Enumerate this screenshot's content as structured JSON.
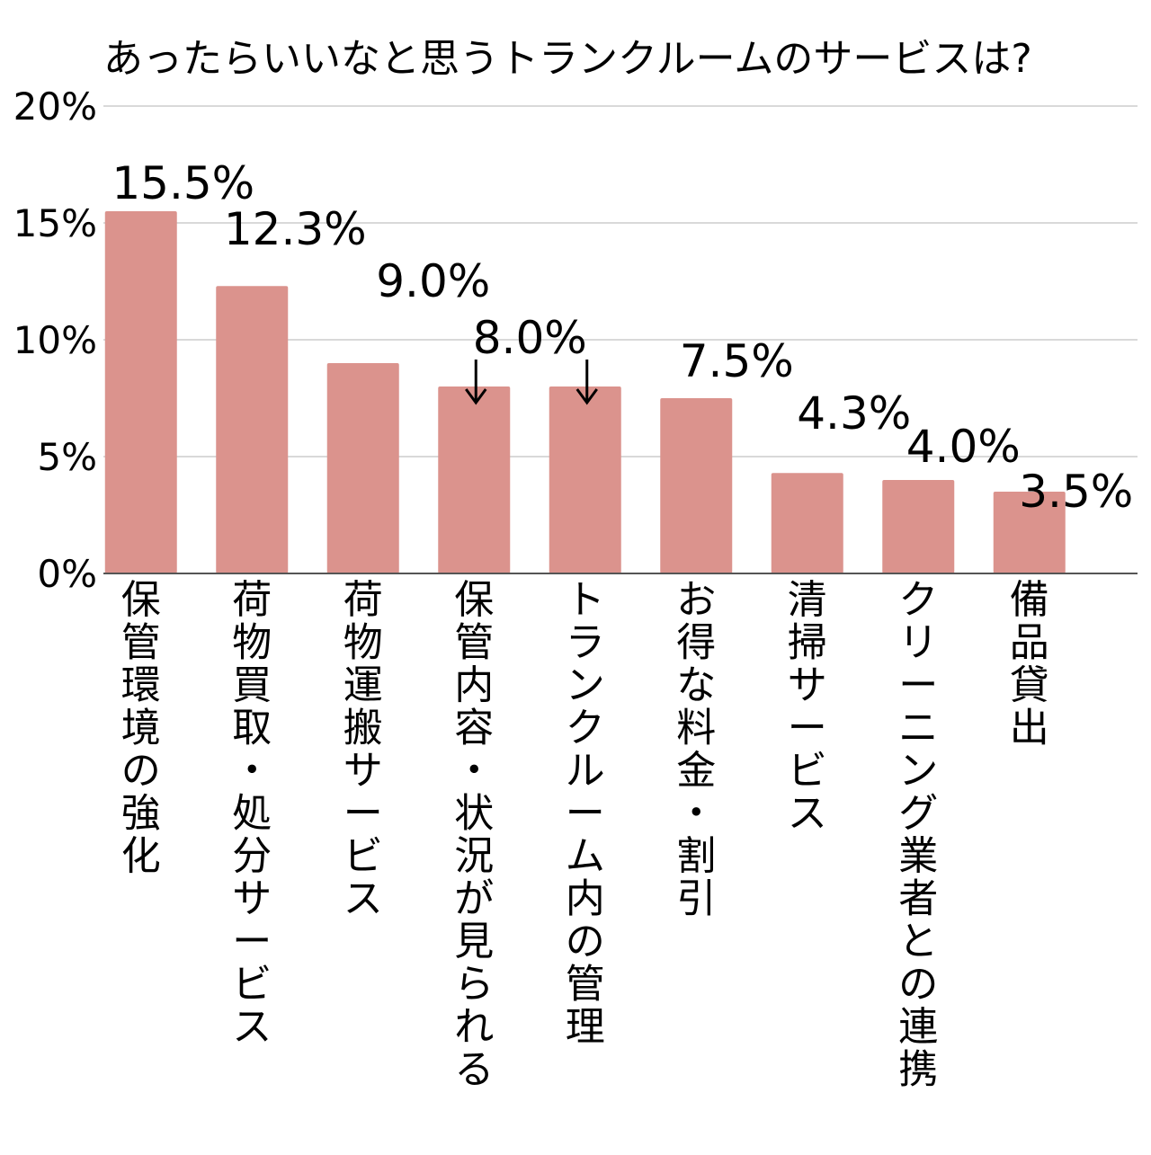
{
  "chart_data": {
    "type": "bar",
    "title": "あったらいいなと思うトランクルームのサービスは?",
    "xlabel": "",
    "ylabel": "",
    "ylim": [
      0,
      20
    ],
    "yticks": [
      0,
      5,
      10,
      15,
      20
    ],
    "ytick_labels": [
      "0%",
      "5%",
      "10%",
      "15%",
      "20%"
    ],
    "grid": true,
    "categories": [
      "保管環境の強化",
      "荷物買取・処分サービス",
      "荷物運搬サービス",
      "保管内容・状況が見られる",
      "トランクルーム内の管理",
      "お得な料金・割引",
      "清掃サービス",
      "クリーニング業者との連携",
      "備品貸出"
    ],
    "values": [
      15.5,
      12.3,
      9.0,
      8.0,
      8.0,
      7.5,
      4.3,
      4.0,
      3.5
    ],
    "data_labels": [
      "15.5%",
      "12.3%",
      "9.0%",
      "8.0%",
      "",
      "7.5%",
      "4.3%",
      "4.0%",
      "3.5%"
    ],
    "colors": {
      "bar": "#db938d",
      "grid": "#d9d9d9",
      "axis": "#555555"
    }
  }
}
